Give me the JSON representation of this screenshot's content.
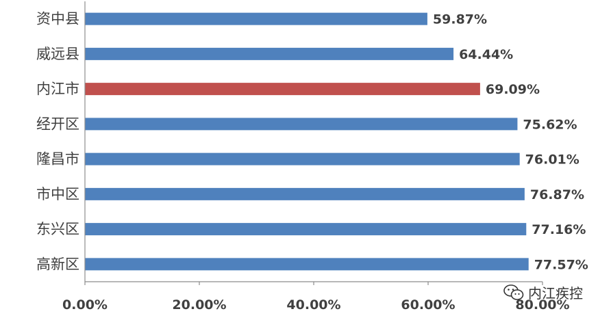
{
  "chart_data": {
    "type": "bar",
    "orientation": "horizontal",
    "categories": [
      "资中县",
      "威远县",
      "内江市",
      "经开区",
      "隆昌市",
      "市中区",
      "东兴区",
      "高新区"
    ],
    "values": [
      59.87,
      64.44,
      69.09,
      75.62,
      76.01,
      76.87,
      77.16,
      77.57
    ],
    "value_labels": [
      "59.87%",
      "64.44%",
      "69.09%",
      "75.62%",
      "76.01%",
      "76.87%",
      "77.16%",
      "77.57%"
    ],
    "highlight_category": "内江市",
    "colors": {
      "bar": "#4f81bd",
      "highlight": "#c0504d"
    },
    "xlim": [
      0,
      80
    ],
    "x_ticks": [
      "0.00%",
      "20.00%",
      "40.00%",
      "60.00%",
      "80.00%"
    ],
    "grid": false,
    "legend": "none",
    "title": "",
    "xlabel": "",
    "ylabel": ""
  },
  "watermark": {
    "text": "内江疾控",
    "icon": "wechat-icon"
  }
}
